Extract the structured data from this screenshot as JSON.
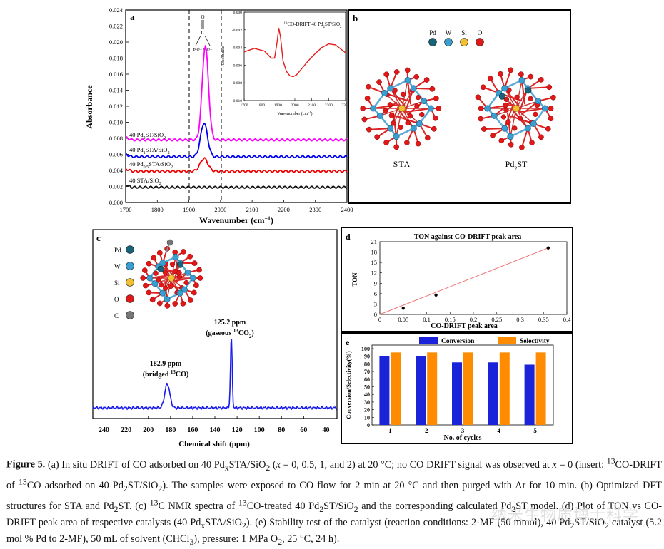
{
  "panel_a": {
    "letter": "a",
    "sample_labels": [
      "40 Pd2ST/SiO2",
      "40 Pd1STA/SiO2",
      "40 Pd0.5STA/SiO2",
      "40 STA/SiO2"
    ],
    "annotation_vline_left": "1900",
    "annotation_vline_right": "2000",
    "bridge_label_O": "O",
    "bridge_label_C": "C",
    "bridge_label_pd": "Pd2+ Pd2+",
    "chart_data": {
      "type": "line",
      "title": "",
      "xlabel": "Wavenumber (cm-1)",
      "ylabel": "Absorbance",
      "xlim": [
        1700,
        2400
      ],
      "ylim": [
        0,
        0.024
      ],
      "xticks": [
        1700,
        1800,
        1900,
        2000,
        2100,
        2200,
        2300,
        2400
      ],
      "yticks": [
        "0.000",
        "0.002",
        "0.004",
        "0.006",
        "0.008",
        "0.010",
        "0.012",
        "0.014",
        "0.016",
        "0.018",
        "0.020",
        "0.022",
        "0.024"
      ],
      "series": [
        {
          "name": "40 Pd2ST/SiO2",
          "color": "#ff00ff",
          "baseline": 0.0078,
          "peak_x": 1952,
          "peak_y": 0.0195
        },
        {
          "name": "40 Pd1STA/SiO2",
          "color": "#0000ee",
          "baseline": 0.0057,
          "peak_x": 1948,
          "peak_y": 0.0099
        },
        {
          "name": "40 Pd0.5STA/SiO2",
          "color": "#ee0000",
          "baseline": 0.0039,
          "peak_x": 1948,
          "peak_y": 0.0055
        },
        {
          "name": "40 STA/SiO2",
          "color": "#111111",
          "baseline": 0.0019,
          "peak_x": 1948,
          "peak_y": 0.0019
        }
      ]
    },
    "inset": {
      "title": "13CO-DRIFT 40 Pd2ST/SiO2",
      "chart_data": {
        "type": "line",
        "xlabel": "Wavenumber (cm-1)",
        "ylabel": "Absorbance",
        "xlim": [
          1700,
          2300
        ],
        "ylim": [
          -0.01,
          0.0
        ],
        "xticks": [
          1700,
          1800,
          1900,
          2000,
          2100,
          2200,
          2300
        ],
        "yticks": [
          "0.000",
          "-0.002",
          "-0.004",
          "-0.006",
          "-0.008",
          "-0.010"
        ],
        "x": [
          1700,
          1760,
          1820,
          1860,
          1880,
          1895,
          1905,
          1915,
          1930,
          1950,
          1970,
          1990,
          2010,
          2040,
          2080,
          2120,
          2160,
          2200,
          2240,
          2280,
          2300
        ],
        "y": [
          -0.0045,
          -0.0041,
          -0.0044,
          -0.0052,
          -0.0052,
          -0.0034,
          -0.0018,
          -0.0028,
          -0.0055,
          -0.0067,
          -0.0072,
          -0.0073,
          -0.0071,
          -0.0064,
          -0.0055,
          -0.0047,
          -0.004,
          -0.0036,
          -0.0037,
          -0.0043,
          -0.0046
        ]
      }
    }
  },
  "panel_b": {
    "letter": "b",
    "legend": [
      {
        "label": "Pd",
        "color": "#17647a"
      },
      {
        "label": "W",
        "color": "#3a9fd0"
      },
      {
        "label": "Si",
        "color": "#f0c030"
      },
      {
        "label": "O",
        "color": "#e01818"
      }
    ],
    "structure_labels": [
      "STA",
      "Pd2ST"
    ]
  },
  "panel_c": {
    "letter": "c",
    "legend": [
      {
        "label": "Pd",
        "color": "#17647a"
      },
      {
        "label": "W",
        "color": "#3a9fd0"
      },
      {
        "label": "Si",
        "color": "#f0c030"
      },
      {
        "label": "O",
        "color": "#e01818"
      },
      {
        "label": "C",
        "color": "#777777"
      }
    ],
    "peak_labels": [
      {
        "line1": "182.9 ppm",
        "line2": "(bridged 13CO)"
      },
      {
        "line1": "125.2 ppm",
        "line2": "(gaseous 13CO2)"
      }
    ],
    "chart_data": {
      "type": "line",
      "xlabel": "Chemical shift (ppm)",
      "xlim": [
        250,
        30
      ],
      "xticks": [
        240,
        220,
        200,
        180,
        160,
        140,
        120,
        100,
        80,
        60,
        40
      ],
      "peaks": [
        {
          "x": 182.9,
          "height": 0.3
        },
        {
          "x": 125.2,
          "height": 0.88
        }
      ]
    }
  },
  "panel_d": {
    "letter": "d",
    "chart_data": {
      "type": "scatter",
      "title": "TON against CO-DRIFT peak area",
      "xlabel": "CO-DRIFT peak area",
      "ylabel": "TON",
      "xlim": [
        0,
        0.4
      ],
      "ylim": [
        0,
        21
      ],
      "xticks": [
        "0",
        "0.05",
        "0.1",
        "0.15",
        "0.2",
        "0.25",
        "0.3",
        "0.35",
        "0.4"
      ],
      "yticks": [
        "0",
        "3",
        "6",
        "9",
        "12",
        "15",
        "18",
        "21"
      ],
      "x": [
        0.05,
        0.12,
        0.36
      ],
      "y": [
        1.8,
        5.6,
        19.2
      ],
      "fit_line": {
        "x": [
          0.0,
          0.36
        ],
        "y": [
          0.0,
          19.2
        ]
      }
    }
  },
  "panel_e": {
    "letter": "e",
    "chart_data": {
      "type": "bar",
      "xlabel": "No. of cycles",
      "ylabel": "Conversion/Selectivity(%)",
      "categories": [
        "1",
        "2",
        "3",
        "4",
        "5"
      ],
      "ylim": [
        0,
        100
      ],
      "yticks": [
        "0",
        "10",
        "20",
        "30",
        "40",
        "50",
        "60",
        "70",
        "80",
        "90",
        "100"
      ],
      "series": [
        {
          "name": "Conversion",
          "color": "#1a23d8",
          "values": [
            90,
            90,
            82,
            82,
            79
          ]
        },
        {
          "name": "Selectivity",
          "color": "#ff8c00",
          "values": [
            95,
            95,
            95,
            95,
            95
          ]
        }
      ]
    }
  },
  "caption": {
    "label": "Figure 5.",
    "text": " (a) In situ DRIFT of CO adsorbed on 40 PdxSTA/SiO2 (x = 0, 0.5, 1, and 2) at 20 °C; no CO DRIFT signal was observed at x = 0 (insert: 13CO-DRIFT of 13CO adsorbed on 40 Pd2ST/SiO2). The samples were exposed to CO flow for 2 min at 20 °C and then purged with Ar for 10 min. (b) Optimized DFT structures for STA and Pd2ST. (c) 13C NMR spectra of 13CO-treated 40 Pd2ST/SiO2 and the corresponding calculated Pd2ST model. (d) Plot of TON vs CO-DRIFT peak area of respective catalysts (40 PdxSTA/SiO2). (e) Stability test of the catalyst (reaction conditions: 2-MF (50 mmol), 40 Pd2ST/SiO2 catalyst (5.2 mol % Pd to 2-MF), 50 mL of solvent (CHCl3), pressure: 1 MPa O2, 25 °C, 24 h)."
  },
  "watermark": "纳米生物质博士科学"
}
